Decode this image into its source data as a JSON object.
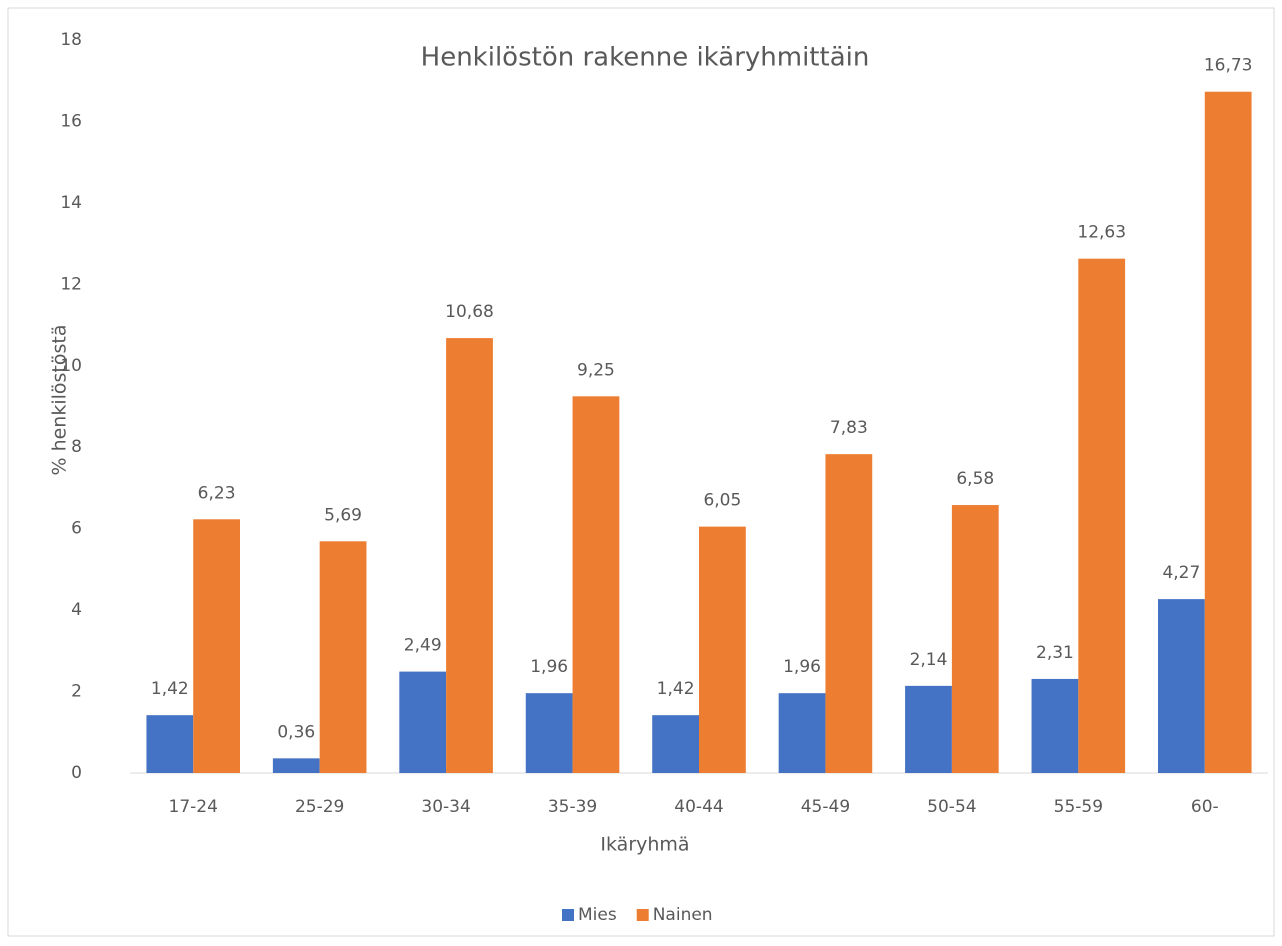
{
  "chart_data": {
    "type": "bar",
    "title": "Henkilöstön rakenne ikäryhmittäin",
    "x_label": "Ikäryhmä",
    "y_label": "% henkilöstöstä",
    "categories": [
      "17-24",
      "25-29",
      "30-34",
      "35-39",
      "40-44",
      "45-49",
      "50-54",
      "55-59",
      "60-"
    ],
    "series": [
      {
        "name": "Mies",
        "color": "#4472c4",
        "values": [
          1.42,
          0.36,
          2.49,
          1.96,
          1.42,
          1.96,
          2.14,
          2.31,
          4.27
        ],
        "value_labels": [
          "1,42",
          "0,36",
          "2,49",
          "1,96",
          "1,42",
          "1,96",
          "2,14",
          "2,31",
          "4,27"
        ]
      },
      {
        "name": "Nainen",
        "color": "#ed7d31",
        "values": [
          6.23,
          5.69,
          10.68,
          9.25,
          6.05,
          7.83,
          6.58,
          12.63,
          16.73
        ],
        "value_labels": [
          "6,23",
          "5,69",
          "10,68",
          "9,25",
          "6,05",
          "7,83",
          "6,58",
          "12,63",
          "16,73"
        ]
      }
    ],
    "ylim": [
      0,
      18
    ],
    "yticks": [
      0,
      2,
      4,
      6,
      8,
      10,
      12,
      14,
      16,
      18
    ],
    "grid": false,
    "legend": "bottom"
  }
}
